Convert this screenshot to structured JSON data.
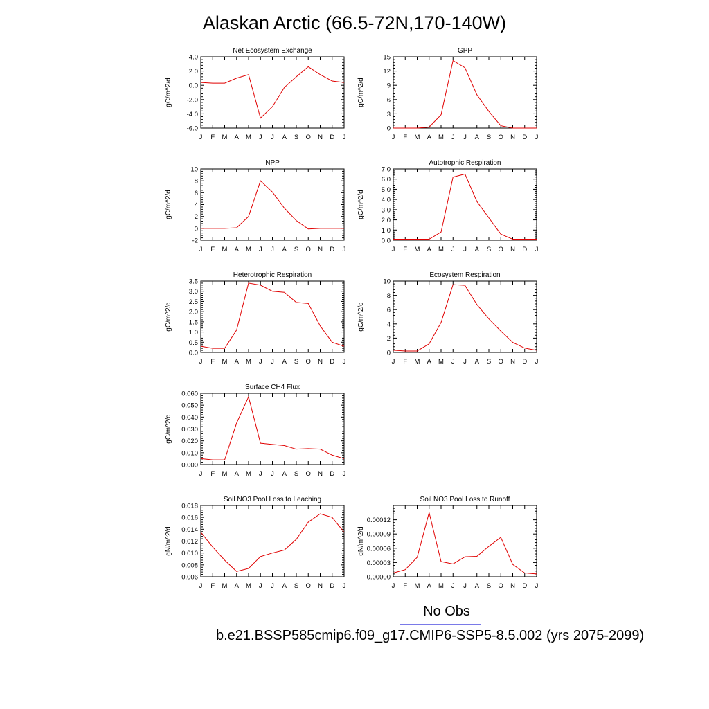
{
  "title": "Alaskan Arctic (66.5-72N,170-140W)",
  "legend": {
    "obs_label": "No Obs",
    "obs_color": "#7a7ae8",
    "model_color": "#f08a8a"
  },
  "case_label": "b.e21.BSSP585cmip6.f09_g17.CMIP6-SSP5-8.5.002 (yrs 2075-2099)",
  "line_color": "#e00000",
  "chart_data": [
    {
      "type": "line",
      "title": "Net Ecosystem Exchange",
      "ylabel": "gC/m^2/d",
      "x": [
        "J",
        "F",
        "M",
        "A",
        "M",
        "J",
        "J",
        "A",
        "S",
        "O",
        "N",
        "D",
        "J"
      ],
      "ylim": [
        -6,
        4
      ],
      "yticks": [
        "-6.0",
        "-4.0",
        "-2.0",
        "0.0",
        "2.0",
        "4.0"
      ],
      "series": [
        {
          "values": [
            0.4,
            0.3,
            0.3,
            1.0,
            1.5,
            -4.6,
            -3.0,
            -0.3,
            1.2,
            2.6,
            1.5,
            0.6,
            0.4
          ]
        }
      ]
    },
    {
      "type": "line",
      "title": "GPP",
      "ylabel": "gC/m^2/d",
      "x": [
        "J",
        "F",
        "M",
        "A",
        "M",
        "J",
        "J",
        "A",
        "S",
        "O",
        "N",
        "D",
        "J"
      ],
      "ylim": [
        0,
        15
      ],
      "yticks": [
        "0",
        "3",
        "6",
        "9",
        "12",
        "15"
      ],
      "series": [
        {
          "values": [
            0.0,
            0.0,
            0.0,
            0.2,
            2.8,
            14.2,
            12.7,
            7.0,
            3.5,
            0.5,
            0.0,
            0.0,
            0.0
          ]
        }
      ]
    },
    {
      "type": "line",
      "title": "NPP",
      "ylabel": "gC/m^2/d",
      "x": [
        "J",
        "F",
        "M",
        "A",
        "M",
        "J",
        "J",
        "A",
        "S",
        "O",
        "N",
        "D",
        "J"
      ],
      "ylim": [
        -2,
        10
      ],
      "yticks": [
        "-2",
        "0",
        "2",
        "4",
        "6",
        "8",
        "10"
      ],
      "series": [
        {
          "values": [
            0.0,
            0.0,
            0.0,
            0.1,
            2.0,
            8.0,
            6.1,
            3.4,
            1.3,
            -0.1,
            0.0,
            0.0,
            0.0
          ]
        }
      ]
    },
    {
      "type": "line",
      "title": "Autotrophic Respiration",
      "ylabel": "gC/m^2/d",
      "x": [
        "J",
        "F",
        "M",
        "A",
        "M",
        "J",
        "J",
        "A",
        "S",
        "O",
        "N",
        "D",
        "J"
      ],
      "ylim": [
        0,
        7
      ],
      "yticks": [
        "0.0",
        "1.0",
        "2.0",
        "3.0",
        "4.0",
        "5.0",
        "6.0",
        "7.0"
      ],
      "series": [
        {
          "values": [
            0.1,
            0.1,
            0.1,
            0.1,
            0.8,
            6.2,
            6.5,
            3.8,
            2.2,
            0.6,
            0.1,
            0.1,
            0.1
          ]
        }
      ]
    },
    {
      "type": "line",
      "title": "Heterotrophic Respiration",
      "ylabel": "gC/m^2/d",
      "x": [
        "J",
        "F",
        "M",
        "A",
        "M",
        "J",
        "J",
        "A",
        "S",
        "O",
        "N",
        "D",
        "J"
      ],
      "ylim": [
        0,
        3.5
      ],
      "yticks": [
        "0.0",
        "0.5",
        "1.0",
        "1.5",
        "2.0",
        "2.5",
        "3.0",
        "3.5"
      ],
      "series": [
        {
          "values": [
            0.3,
            0.2,
            0.2,
            1.1,
            3.4,
            3.3,
            3.0,
            2.95,
            2.45,
            2.4,
            1.3,
            0.5,
            0.3
          ]
        }
      ]
    },
    {
      "type": "line",
      "title": "Ecosystem Respiration",
      "ylabel": "gC/m^2/d",
      "x": [
        "J",
        "F",
        "M",
        "A",
        "M",
        "J",
        "J",
        "A",
        "S",
        "O",
        "N",
        "D",
        "J"
      ],
      "ylim": [
        0,
        10
      ],
      "yticks": [
        "0",
        "2",
        "4",
        "6",
        "8",
        "10"
      ],
      "series": [
        {
          "values": [
            0.3,
            0.2,
            0.2,
            1.2,
            4.2,
            9.5,
            9.4,
            6.7,
            4.7,
            3.0,
            1.4,
            0.6,
            0.3
          ]
        }
      ]
    },
    {
      "type": "line",
      "title": "Surface CH4 Flux",
      "ylabel": "gC/m^2/d",
      "x": [
        "J",
        "F",
        "M",
        "A",
        "M",
        "J",
        "J",
        "A",
        "S",
        "O",
        "N",
        "D",
        "J"
      ],
      "ylim": [
        0,
        0.06
      ],
      "yticks": [
        "0.000",
        "0.010",
        "0.020",
        "0.030",
        "0.040",
        "0.050",
        "0.060"
      ],
      "series": [
        {
          "values": [
            0.005,
            0.004,
            0.004,
            0.035,
            0.057,
            0.018,
            0.017,
            0.016,
            0.013,
            0.0135,
            0.013,
            0.008,
            0.005
          ]
        }
      ]
    },
    null,
    {
      "type": "line",
      "title": "Soil NO3 Pool Loss to Leaching",
      "ylabel": "gN/m^2/d",
      "x": [
        "J",
        "F",
        "M",
        "A",
        "M",
        "J",
        "J",
        "A",
        "S",
        "O",
        "N",
        "D",
        "J"
      ],
      "ylim": [
        0.006,
        0.018
      ],
      "yticks": [
        "0.006",
        "0.008",
        "0.010",
        "0.012",
        "0.014",
        "0.016",
        "0.018"
      ],
      "series": [
        {
          "values": [
            0.0135,
            0.011,
            0.0088,
            0.0069,
            0.0074,
            0.0094,
            0.01,
            0.0105,
            0.0123,
            0.0152,
            0.0166,
            0.016,
            0.0135
          ]
        }
      ]
    },
    {
      "type": "line",
      "title": "Soil NO3 Pool Loss to Runoff",
      "ylabel": "gN/m^2/d",
      "x": [
        "J",
        "F",
        "M",
        "A",
        "M",
        "J",
        "J",
        "A",
        "S",
        "O",
        "N",
        "D",
        "J"
      ],
      "ylim": [
        0,
        0.00015
      ],
      "yticks": [
        "0.00000",
        "0.00003",
        "0.00006",
        "0.00009",
        "0.00012"
      ],
      "yticks_values": [
        0,
        3e-05,
        6e-05,
        9e-05,
        0.00012
      ],
      "series": [
        {
          "values": [
            8e-06,
            1.5e-05,
            4.1e-05,
            0.000135,
            3.2e-05,
            2.7e-05,
            4.2e-05,
            4.3e-05,
            6.4e-05,
            8.3e-05,
            2.6e-05,
            8e-06,
            6e-06
          ]
        }
      ]
    }
  ]
}
